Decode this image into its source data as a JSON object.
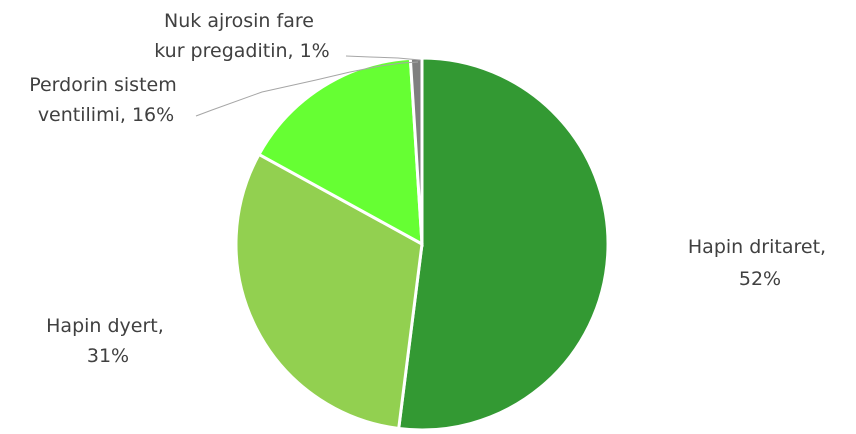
{
  "chart_data": {
    "type": "pie",
    "title": "",
    "legend": "none",
    "slices": [
      {
        "label": "Hapin dritaret",
        "value": 52,
        "value_label": "52%",
        "color": "#339933"
      },
      {
        "label": "Hapin dyert",
        "value": 31,
        "value_label": "31%",
        "color": "#92d050"
      },
      {
        "label": "Perdorin sistem ventilimi",
        "value": 16,
        "value_label": "16%",
        "color": "#66ff33"
      },
      {
        "label": "Nuk ajrosin fare kur pregaditin",
        "value": 1,
        "value_label": "1%",
        "color": "#7f7f7f"
      }
    ],
    "label_lines": [
      [
        "Hapin dritaret,",
        "52%"
      ],
      [
        "Hapin dyert,",
        "31%"
      ],
      [
        "Perdorin sistem",
        "ventilimi, 16%"
      ],
      [
        "Nuk ajrosin fare",
        "kur pregaditin,  1%"
      ]
    ]
  }
}
